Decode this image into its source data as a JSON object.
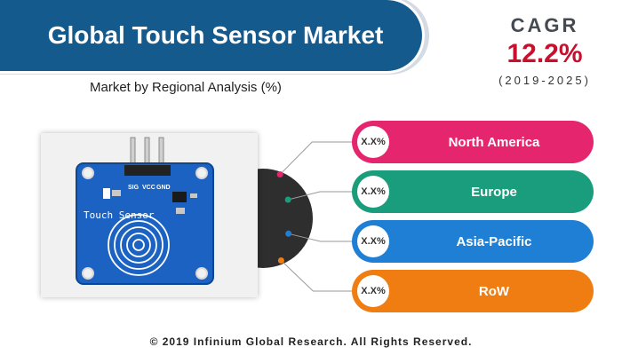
{
  "header": {
    "title": "Global Touch Sensor Market",
    "subtitle": "Market by Regional Analysis (%)"
  },
  "cagr": {
    "label": "CAGR",
    "value": "12.2%",
    "period": "(2019-2025)"
  },
  "pcb": {
    "pin_labels": [
      "SIG",
      "VCC",
      "GND"
    ],
    "board_text": "Touch Sensor"
  },
  "chart_data": {
    "type": "table",
    "title": "Market by Regional Analysis (%)",
    "categories": [
      "North America",
      "Europe",
      "Asia-Pacific",
      "RoW"
    ],
    "values": [
      "X.X%",
      "X.X%",
      "X.X%",
      "X.X%"
    ],
    "colors": [
      "#e6256f",
      "#1a9d7d",
      "#1e7fd4",
      "#f07d12"
    ]
  },
  "footer": {
    "text": "© 2019 Infinium Global Research. All Rights Reserved."
  }
}
